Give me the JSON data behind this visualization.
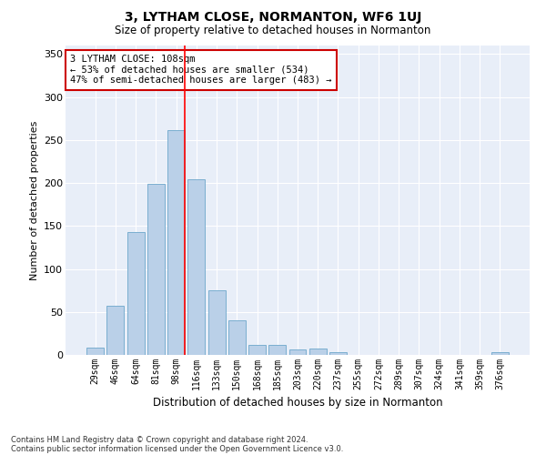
{
  "title": "3, LYTHAM CLOSE, NORMANTON, WF6 1UJ",
  "subtitle": "Size of property relative to detached houses in Normanton",
  "xlabel": "Distribution of detached houses by size in Normanton",
  "ylabel": "Number of detached properties",
  "categories": [
    "29sqm",
    "46sqm",
    "64sqm",
    "81sqm",
    "98sqm",
    "116sqm",
    "133sqm",
    "150sqm",
    "168sqm",
    "185sqm",
    "203sqm",
    "220sqm",
    "237sqm",
    "255sqm",
    "272sqm",
    "289sqm",
    "307sqm",
    "324sqm",
    "341sqm",
    "359sqm",
    "376sqm"
  ],
  "values": [
    8,
    57,
    143,
    199,
    261,
    204,
    75,
    40,
    12,
    12,
    6,
    7,
    3,
    0,
    0,
    0,
    0,
    0,
    0,
    0,
    3
  ],
  "bar_color": "#bad0e8",
  "bar_edge_color": "#7aaed0",
  "annotation_text": "3 LYTHAM CLOSE: 108sqm\n← 53% of detached houses are smaller (534)\n47% of semi-detached houses are larger (483) →",
  "annotation_box_color": "#ffffff",
  "annotation_box_edge": "#cc0000",
  "ylim": [
    0,
    360
  ],
  "yticks": [
    0,
    50,
    100,
    150,
    200,
    250,
    300,
    350
  ],
  "bg_color": "#e8eef8",
  "footer1": "Contains HM Land Registry data © Crown copyright and database right 2024.",
  "footer2": "Contains public sector information licensed under the Open Government Licence v3.0.",
  "red_line_bin_index": 5,
  "fig_width": 6.0,
  "fig_height": 5.0,
  "dpi": 100
}
